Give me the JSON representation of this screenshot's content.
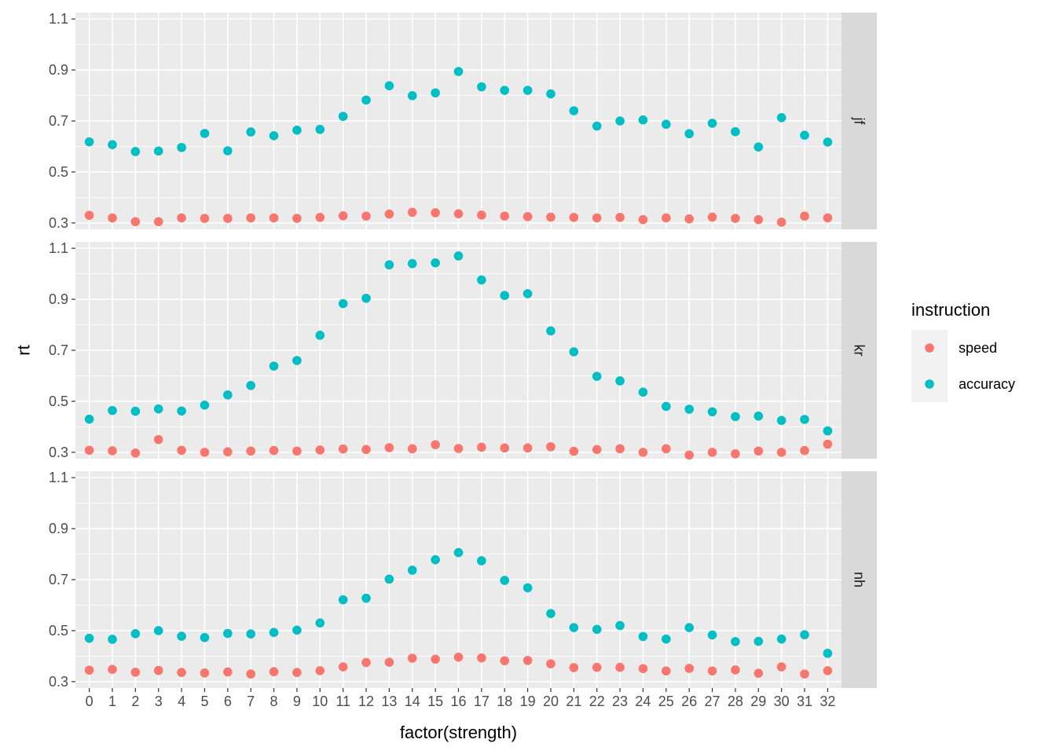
{
  "chart_data": {
    "type": "scatter",
    "xlabel": "factor(strength)",
    "ylabel": "rt",
    "x": [
      0,
      1,
      2,
      3,
      4,
      5,
      6,
      7,
      8,
      9,
      10,
      11,
      12,
      13,
      14,
      15,
      16,
      17,
      18,
      19,
      20,
      21,
      22,
      23,
      24,
      25,
      26,
      27,
      28,
      29,
      30,
      31,
      32
    ],
    "x_tick_labels": [
      "0",
      "1",
      "2",
      "3",
      "4",
      "5",
      "6",
      "7",
      "8",
      "9",
      "10",
      "11",
      "12",
      "13",
      "14",
      "15",
      "16",
      "17",
      "18",
      "19",
      "20",
      "21",
      "22",
      "23",
      "24",
      "25",
      "26",
      "27",
      "28",
      "29",
      "30",
      "31",
      "32"
    ],
    "y_ticks": [
      0.3,
      0.5,
      0.7,
      0.9,
      1.1
    ],
    "y_tick_labels": [
      "0.3",
      "0.5",
      "0.7",
      "0.9",
      "1.1"
    ],
    "ylim": [
      0.275,
      1.125
    ],
    "grid": true,
    "legend": {
      "title": "instruction",
      "placement": "right",
      "entries": [
        {
          "name": "speed",
          "color": "#F8766D"
        },
        {
          "name": "accuracy",
          "color": "#00BFC4"
        }
      ]
    },
    "facets": [
      {
        "label": "jf",
        "series": [
          {
            "name": "speed",
            "color": "#F8766D",
            "values": [
              0.33,
              0.32,
              0.305,
              0.305,
              0.32,
              0.318,
              0.318,
              0.32,
              0.32,
              0.318,
              0.322,
              0.328,
              0.327,
              0.335,
              0.342,
              0.34,
              0.336,
              0.331,
              0.327,
              0.325,
              0.323,
              0.322,
              0.32,
              0.322,
              0.313,
              0.32,
              0.316,
              0.323,
              0.318,
              0.313,
              0.303,
              0.327,
              0.32
            ]
          },
          {
            "name": "accuracy",
            "color": "#00BFC4",
            "values": [
              0.618,
              0.607,
              0.58,
              0.582,
              0.596,
              0.651,
              0.583,
              0.657,
              0.642,
              0.664,
              0.667,
              0.718,
              0.782,
              0.838,
              0.799,
              0.81,
              0.894,
              0.834,
              0.82,
              0.82,
              0.806,
              0.74,
              0.68,
              0.7,
              0.704,
              0.687,
              0.65,
              0.691,
              0.658,
              0.598,
              0.713,
              0.644,
              0.617
            ]
          }
        ]
      },
      {
        "label": "kr",
        "series": [
          {
            "name": "speed",
            "color": "#F8766D",
            "values": [
              0.308,
              0.306,
              0.297,
              0.35,
              0.308,
              0.3,
              0.302,
              0.305,
              0.307,
              0.305,
              0.309,
              0.313,
              0.311,
              0.318,
              0.314,
              0.33,
              0.315,
              0.32,
              0.317,
              0.317,
              0.322,
              0.304,
              0.311,
              0.314,
              0.3,
              0.314,
              0.289,
              0.3,
              0.294,
              0.305,
              0.3,
              0.307,
              0.332
            ]
          },
          {
            "name": "accuracy",
            "color": "#00BFC4",
            "values": [
              0.43,
              0.464,
              0.461,
              0.47,
              0.462,
              0.485,
              0.525,
              0.562,
              0.638,
              0.66,
              0.759,
              0.883,
              0.904,
              1.035,
              1.04,
              1.043,
              1.07,
              0.976,
              0.915,
              0.922,
              0.776,
              0.694,
              0.598,
              0.58,
              0.536,
              0.48,
              0.469,
              0.459,
              0.44,
              0.442,
              0.425,
              0.429,
              0.384
            ]
          }
        ]
      },
      {
        "label": "nh",
        "series": [
          {
            "name": "speed",
            "color": "#F8766D",
            "values": [
              0.345,
              0.348,
              0.337,
              0.344,
              0.336,
              0.334,
              0.338,
              0.33,
              0.339,
              0.336,
              0.343,
              0.358,
              0.375,
              0.376,
              0.392,
              0.388,
              0.396,
              0.393,
              0.382,
              0.383,
              0.37,
              0.355,
              0.356,
              0.356,
              0.351,
              0.342,
              0.352,
              0.342,
              0.346,
              0.333,
              0.358,
              0.33,
              0.343
            ]
          },
          {
            "name": "accuracy",
            "color": "#00BFC4",
            "values": [
              0.47,
              0.466,
              0.488,
              0.5,
              0.478,
              0.473,
              0.489,
              0.487,
              0.493,
              0.502,
              0.53,
              0.621,
              0.627,
              0.702,
              0.737,
              0.778,
              0.806,
              0.774,
              0.697,
              0.668,
              0.567,
              0.512,
              0.505,
              0.52,
              0.477,
              0.467,
              0.512,
              0.483,
              0.457,
              0.458,
              0.467,
              0.484,
              0.411
            ]
          }
        ]
      }
    ]
  }
}
